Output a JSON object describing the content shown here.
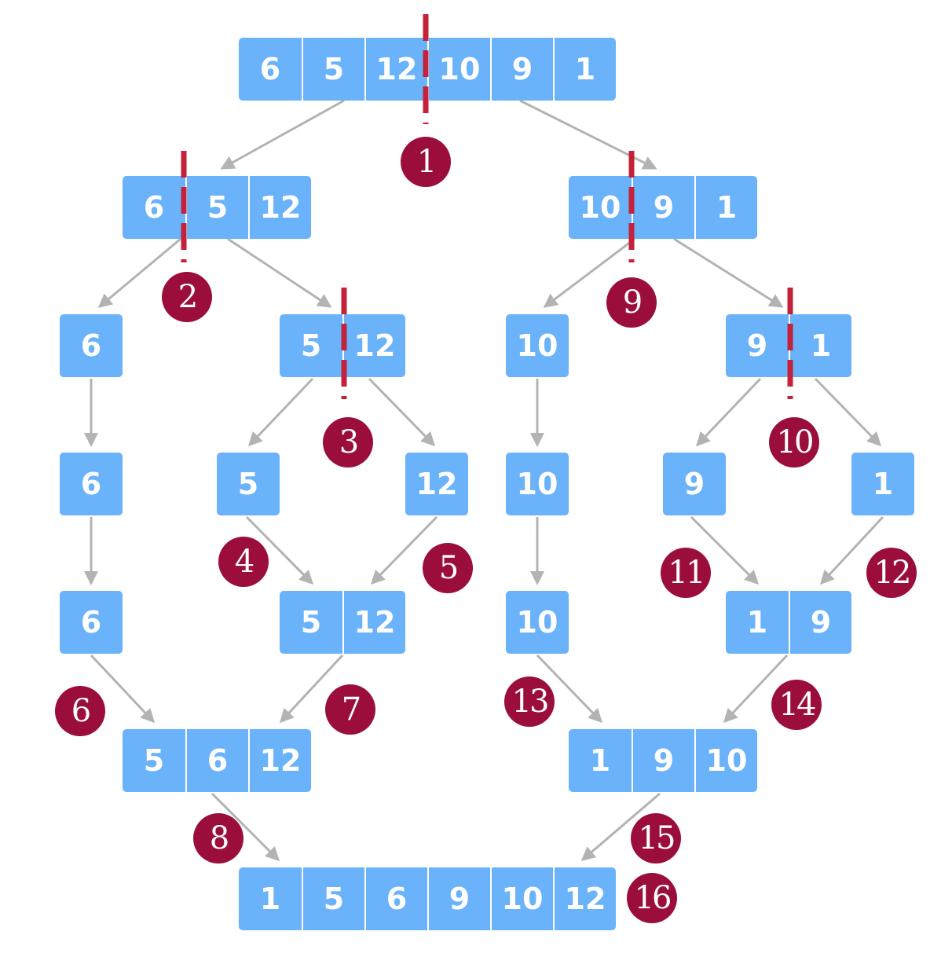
{
  "diagram": {
    "arrays": [
      {
        "id": "root",
        "values": [
          "6",
          "5",
          "12",
          "10",
          "9",
          "1"
        ]
      },
      {
        "id": "left-half",
        "values": [
          "6",
          "5",
          "12"
        ]
      },
      {
        "id": "right-half",
        "values": [
          "10",
          "9",
          "1"
        ]
      },
      {
        "id": "l-6",
        "values": [
          "6"
        ]
      },
      {
        "id": "l-5-12",
        "values": [
          "5",
          "12"
        ]
      },
      {
        "id": "r-10",
        "values": [
          "10"
        ]
      },
      {
        "id": "r-9-1",
        "values": [
          "9",
          "1"
        ]
      },
      {
        "id": "l-6-b",
        "values": [
          "6"
        ]
      },
      {
        "id": "l-5",
        "values": [
          "5"
        ]
      },
      {
        "id": "l-12",
        "values": [
          "12"
        ]
      },
      {
        "id": "r-10-b",
        "values": [
          "10"
        ]
      },
      {
        "id": "r-9",
        "values": [
          "9"
        ]
      },
      {
        "id": "r-1",
        "values": [
          "1"
        ]
      },
      {
        "id": "l-6-c",
        "values": [
          "6"
        ]
      },
      {
        "id": "l-merged-5-12",
        "values": [
          "5",
          "12"
        ]
      },
      {
        "id": "r-10-c",
        "values": [
          "10"
        ]
      },
      {
        "id": "r-merged-1-9",
        "values": [
          "1",
          "9"
        ]
      },
      {
        "id": "left-merged",
        "values": [
          "5",
          "6",
          "12"
        ]
      },
      {
        "id": "right-merged",
        "values": [
          "1",
          "9",
          "10"
        ]
      },
      {
        "id": "final",
        "values": [
          "1",
          "5",
          "6",
          "9",
          "10",
          "12"
        ]
      }
    ],
    "steps": [
      "1",
      "2",
      "3",
      "4",
      "5",
      "6",
      "7",
      "8",
      "9",
      "10",
      "11",
      "12",
      "13",
      "14",
      "15",
      "16"
    ],
    "colors": {
      "box": "#6ab2fa",
      "box_text": "#ffffff",
      "arrow": "#b3b3b3",
      "split_line": "#c4213a",
      "step_circle": "#9b0e3c"
    }
  }
}
